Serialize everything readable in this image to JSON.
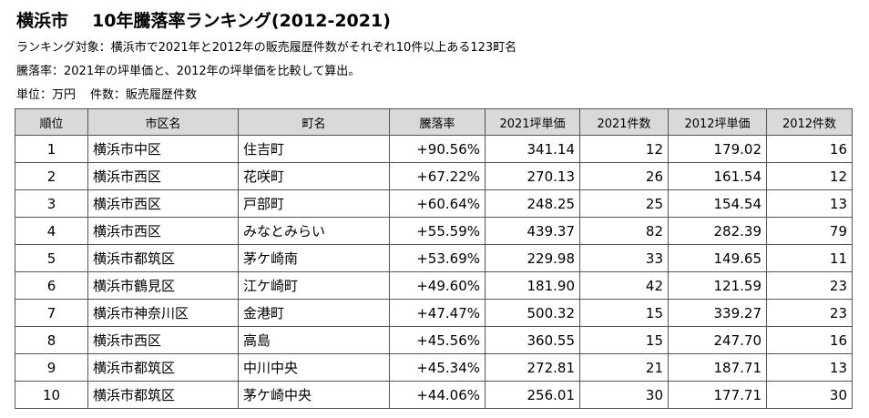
{
  "title": {
    "city": "横浜市",
    "main": "10年騰落率ランキング(2012-2021)"
  },
  "notes": {
    "target": "ランキング対象：横浜市で2021年と2012年の販売履歴件数がそれぞれ10件以上ある123町名",
    "rate_def": "騰落率：2021年の坪単価と、2012年の坪単価を比較して算出。",
    "unit": "単位：万円",
    "count_def": "件数：販売履歴件数"
  },
  "table": {
    "headers": [
      "順位",
      "市区名",
      "町名",
      "騰落率",
      "2021坪単価",
      "2021件数",
      "2012坪単価",
      "2012件数"
    ],
    "rows": [
      [
        "1",
        "横浜市中区",
        "住吉町",
        "+90.56%",
        "341.14",
        "12",
        "179.02",
        "16"
      ],
      [
        "2",
        "横浜市西区",
        "花咲町",
        "+67.22%",
        "270.13",
        "26",
        "161.54",
        "12"
      ],
      [
        "3",
        "横浜市西区",
        "戸部町",
        "+60.64%",
        "248.25",
        "25",
        "154.54",
        "13"
      ],
      [
        "4",
        "横浜市西区",
        "みなとみらい",
        "+55.59%",
        "439.37",
        "82",
        "282.39",
        "79"
      ],
      [
        "5",
        "横浜市都筑区",
        "茅ケ崎南",
        "+53.69%",
        "229.98",
        "33",
        "149.65",
        "11"
      ],
      [
        "6",
        "横浜市鶴見区",
        "江ケ崎町",
        "+49.60%",
        "181.90",
        "42",
        "121.59",
        "23"
      ],
      [
        "7",
        "横浜市神奈川区",
        "金港町",
        "+47.47%",
        "500.32",
        "15",
        "339.27",
        "23"
      ],
      [
        "8",
        "横浜市西区",
        "高島",
        "+45.56%",
        "360.55",
        "15",
        "247.70",
        "16"
      ],
      [
        "9",
        "横浜市都筑区",
        "中川中央",
        "+45.34%",
        "272.81",
        "21",
        "187.71",
        "13"
      ],
      [
        "10",
        "横浜市都筑区",
        "茅ケ崎中央",
        "+44.06%",
        "256.01",
        "30",
        "177.71",
        "30"
      ]
    ]
  }
}
